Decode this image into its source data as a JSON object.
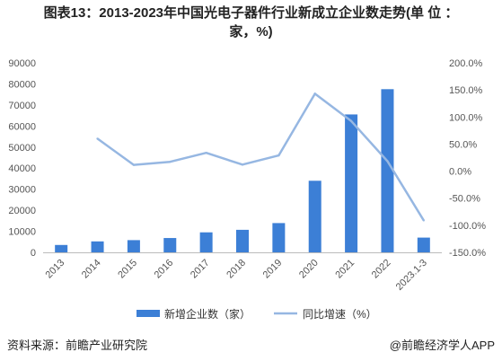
{
  "title": {
    "line1": "图表13：2013-2023年中国光电子器件行业新成立企业数走势(单 位 ：",
    "line2": "家，%)"
  },
  "source": "资料来源：前瞻产业研究院",
  "credit": "@前瞻经济学人APP",
  "colors": {
    "bar": "#3c7fd6",
    "line": "#96b7e2",
    "axis": "#bbbbbb",
    "grid": "#e2e2e2"
  },
  "chart_data": {
    "type": "bar+line",
    "categories": [
      "2013",
      "2014",
      "2015",
      "2016",
      "2017",
      "2018",
      "2019",
      "2020",
      "2021",
      "2022",
      "2023.1-3"
    ],
    "series": [
      {
        "name": "新增企业数（家）",
        "type": "bar",
        "axis": "left",
        "values": [
          3500,
          5200,
          5800,
          6800,
          9500,
          10700,
          13900,
          34000,
          65500,
          77500,
          7000
        ]
      },
      {
        "name": "同比增速（%）",
        "type": "line",
        "axis": "right",
        "values": [
          null,
          60.0,
          11.5,
          17.2,
          33.8,
          12.0,
          29.0,
          143.0,
          92.5,
          18.4,
          -91.0
        ]
      }
    ],
    "y_left": {
      "min": 0,
      "max": 90000,
      "step": 10000,
      "ticks": [
        "0",
        "10000",
        "20000",
        "30000",
        "40000",
        "50000",
        "60000",
        "70000",
        "80000",
        "90000"
      ]
    },
    "y_right": {
      "min": -150,
      "max": 200,
      "step": 50,
      "ticks": [
        "-150.0%",
        "-100.0%",
        "-50.0%",
        "0.0%",
        "50.0%",
        "100.0%",
        "150.0%",
        "200.0%"
      ]
    },
    "legend": {
      "position": "bottom",
      "items": [
        "新增企业数（家）",
        "同比增速（%）"
      ]
    },
    "grid": false
  }
}
